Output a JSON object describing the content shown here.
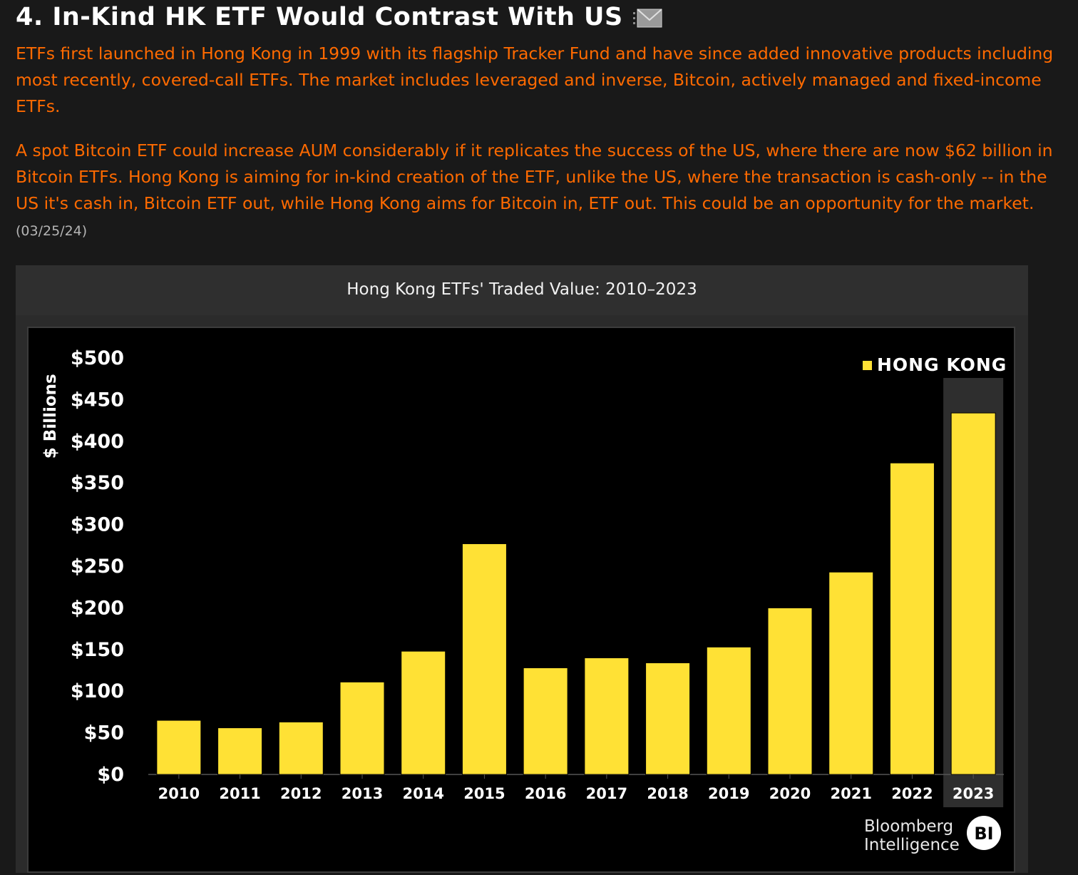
{
  "heading": {
    "title": "4. In-Kind HK ETF Would Contrast With US",
    "icon": "mail-icon"
  },
  "body": {
    "paragraph1": "ETFs first launched in Hong Kong in 1999 with its flagship Tracker Fund and have since added innovative products including most recently, covered-call ETFs. The market includes leveraged and inverse, Bitcoin, actively managed and fixed-income ETFs.",
    "paragraph2": "A spot Bitcoin ETF could increase AUM considerably if it replicates the success of the US, where there are now $62 billion in Bitcoin ETFs. Hong Kong is aiming for in-kind creation of the ETF, unlike the US, where the transaction is cash-only -- in the US it's cash in, Bitcoin ETF out, while Hong Kong aims for Bitcoin in, ETF out. This could be an opportunity for the market.",
    "date": "(03/25/24)"
  },
  "chart_panel": {
    "header": "Hong Kong ETFs' Traded Value: 2010–2023"
  },
  "chart_data": {
    "type": "bar",
    "title": "Hong Kong ETFs' Traded Value: 2010–2023",
    "ylabel": "$ Billions",
    "xlabel": "",
    "categories": [
      "2010",
      "2011",
      "2012",
      "2013",
      "2014",
      "2015",
      "2016",
      "2017",
      "2018",
      "2019",
      "2020",
      "2021",
      "2022",
      "2023"
    ],
    "series": [
      {
        "name": "HONG KONG",
        "values": [
          65,
          56,
          63,
          111,
          148,
          277,
          128,
          140,
          134,
          153,
          200,
          243,
          374,
          434
        ]
      }
    ],
    "ylim": [
      0,
      500
    ],
    "yticks": [
      "$0",
      "$50",
      "$100",
      "$150",
      "$200",
      "$250",
      "$300",
      "$350",
      "$400",
      "$450",
      "$500"
    ],
    "highlight_category": "2023",
    "grid": false,
    "legend_position": "top-right",
    "bar_color": "#ffe135",
    "highlight_color": "#2e2e2e",
    "source_logo": [
      "Bloomberg",
      "Intelligence"
    ],
    "logo_mark": "BI"
  }
}
